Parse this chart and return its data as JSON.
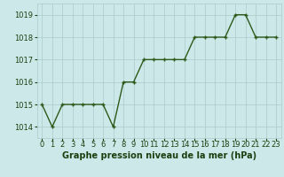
{
  "x": [
    0,
    1,
    2,
    3,
    4,
    5,
    6,
    7,
    8,
    9,
    10,
    11,
    12,
    13,
    14,
    15,
    16,
    17,
    18,
    19,
    20,
    21,
    22,
    23
  ],
  "y": [
    1015,
    1014,
    1015,
    1015,
    1015,
    1015,
    1015,
    1014,
    1016,
    1016,
    1017,
    1017,
    1017,
    1017,
    1017,
    1018,
    1018,
    1018,
    1018,
    1019,
    1019,
    1018,
    1018,
    1018
  ],
  "line_color": "#2d5a1b",
  "marker_color": "#2d5a1b",
  "bg_color": "#cce8e8",
  "grid_color": "#aacaca",
  "text_color": "#1a4010",
  "ylim": [
    1013.5,
    1019.5
  ],
  "yticks": [
    1014,
    1015,
    1016,
    1017,
    1018,
    1019
  ],
  "xlabel": "Graphe pression niveau de la mer (hPa)",
  "xlabel_fontsize": 7.0,
  "tick_fontsize": 6.0,
  "marker_size": 3.5,
  "line_width": 1.0
}
